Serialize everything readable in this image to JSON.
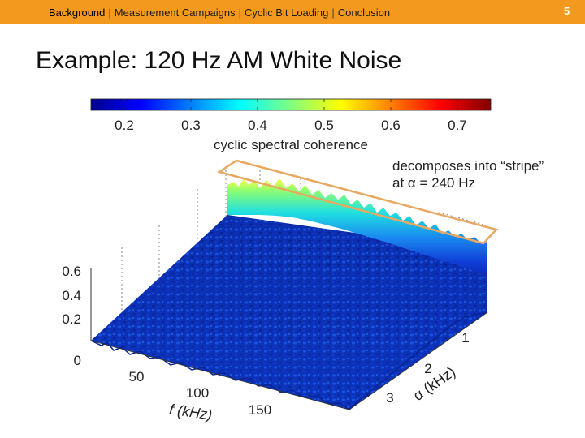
{
  "header": {
    "nav_items": [
      {
        "label": "Background",
        "active": true
      },
      {
        "label": "Measurement Campaigns",
        "active": false
      },
      {
        "label": "Cyclic Bit Loading",
        "active": false
      },
      {
        "label": "Conclusion",
        "active": false
      }
    ],
    "page_number": "5",
    "bar_color": "#f39a1e"
  },
  "slide": {
    "title": "Example: 120 Hz AM White Noise"
  },
  "figure": {
    "colorbar": {
      "ticks": [
        "0.2",
        "0.3",
        "0.4",
        "0.5",
        "0.6",
        "0.7"
      ],
      "label": "cyclic spectral coherence"
    },
    "z_ticks": [
      "0.6",
      "0.4",
      "0.2",
      "0"
    ],
    "f_ticks": [
      "50",
      "100",
      "150"
    ],
    "f_label": "f (kHz)",
    "alpha_ticks": [
      "1",
      "2",
      "3"
    ],
    "alpha_label": "α (kHz)",
    "annotation": {
      "line1": "decomposes into “stripe”",
      "line2": "at α = 240 Hz"
    },
    "highlight_color": "#e8a860"
  }
}
